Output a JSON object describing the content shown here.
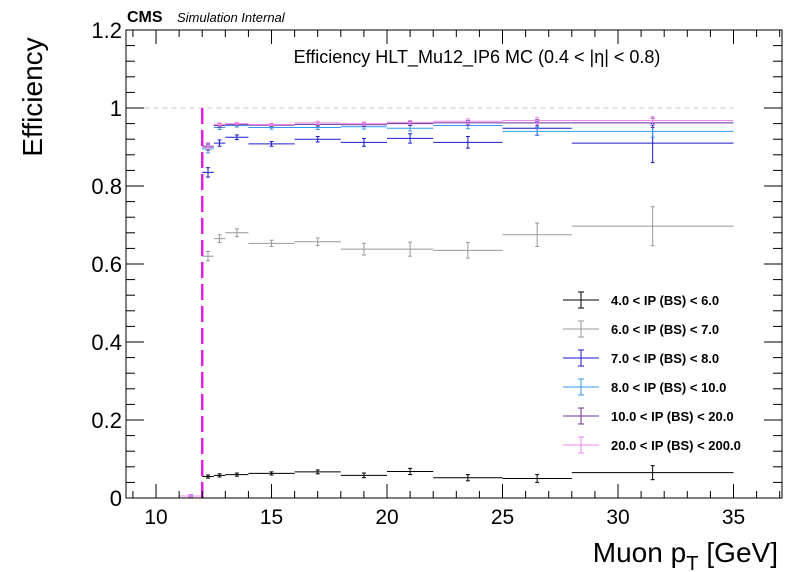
{
  "header": {
    "experiment": "CMS",
    "status": "Simulation Internal"
  },
  "chart_data": {
    "type": "scatter",
    "title": "Efficiency HLT_Mu12_IP6 MC (0.4 < |η| < 0.8)",
    "xlabel": "Muon p_T [GeV]",
    "xlabel_main": "Muon p",
    "xlabel_sub": "T",
    "xlabel_unit": "[GeV]",
    "ylabel": "Efficiency",
    "xlim": [
      8.7,
      37.1
    ],
    "ylim": [
      0,
      1.2
    ],
    "xticks": [
      10,
      15,
      20,
      25,
      30,
      35
    ],
    "yticks": [
      0,
      0.2,
      0.4,
      0.6,
      0.8,
      1,
      1.2
    ],
    "ytick_labels": [
      "0",
      "0.2",
      "0.4",
      "0.6",
      "0.8",
      "1",
      "1.2"
    ],
    "reference_line": {
      "y": 1.0,
      "x": [
        9.5,
        35
      ],
      "style": "dashed",
      "color": "#c8c8c8"
    },
    "threshold_line": {
      "x": 12,
      "style": "dashed",
      "color": "#dd22dd"
    },
    "legend_position": "bottom-right",
    "grid": false,
    "series": [
      {
        "name": "4.0 < IP (BS) < 6.0",
        "color": "#000000",
        "points": [
          {
            "x0": 11,
            "x1": 12,
            "y": 0.005,
            "err": 0.003
          },
          {
            "x0": 12,
            "x1": 12.5,
            "y": 0.055,
            "err": 0.004
          },
          {
            "x0": 12.5,
            "x1": 13,
            "y": 0.058,
            "err": 0.004
          },
          {
            "x0": 13,
            "x1": 14,
            "y": 0.06,
            "err": 0.004
          },
          {
            "x0": 14,
            "x1": 16,
            "y": 0.063,
            "err": 0.004
          },
          {
            "x0": 16,
            "x1": 18,
            "y": 0.067,
            "err": 0.005
          },
          {
            "x0": 18,
            "x1": 20,
            "y": 0.058,
            "err": 0.006
          },
          {
            "x0": 20,
            "x1": 22,
            "y": 0.068,
            "err": 0.008
          },
          {
            "x0": 22,
            "x1": 25,
            "y": 0.052,
            "err": 0.008
          },
          {
            "x0": 25,
            "x1": 28,
            "y": 0.05,
            "err": 0.01
          },
          {
            "x0": 28,
            "x1": 35,
            "y": 0.065,
            "err": 0.018
          }
        ]
      },
      {
        "name": "6.0 < IP (BS) < 7.0",
        "color": "#999999",
        "points": [
          {
            "x0": 11,
            "x1": 12,
            "y": 0.005,
            "err": 0.003
          },
          {
            "x0": 12,
            "x1": 12.5,
            "y": 0.62,
            "err": 0.012
          },
          {
            "x0": 12.5,
            "x1": 13,
            "y": 0.665,
            "err": 0.01
          },
          {
            "x0": 13,
            "x1": 14,
            "y": 0.68,
            "err": 0.01
          },
          {
            "x0": 14,
            "x1": 16,
            "y": 0.653,
            "err": 0.008
          },
          {
            "x0": 16,
            "x1": 18,
            "y": 0.657,
            "err": 0.01
          },
          {
            "x0": 18,
            "x1": 20,
            "y": 0.638,
            "err": 0.015
          },
          {
            "x0": 20,
            "x1": 22,
            "y": 0.638,
            "err": 0.018
          },
          {
            "x0": 22,
            "x1": 25,
            "y": 0.635,
            "err": 0.02
          },
          {
            "x0": 25,
            "x1": 28,
            "y": 0.675,
            "err": 0.03
          },
          {
            "x0": 28,
            "x1": 35,
            "y": 0.697,
            "err": 0.05
          }
        ]
      },
      {
        "name": "7.0 < IP (BS) < 8.0",
        "color": "#1a1acc",
        "points": [
          {
            "x0": 11,
            "x1": 12,
            "y": 0.005,
            "err": 0.003
          },
          {
            "x0": 12,
            "x1": 12.5,
            "y": 0.835,
            "err": 0.012
          },
          {
            "x0": 12.5,
            "x1": 13,
            "y": 0.91,
            "err": 0.008
          },
          {
            "x0": 13,
            "x1": 14,
            "y": 0.925,
            "err": 0.006
          },
          {
            "x0": 14,
            "x1": 16,
            "y": 0.908,
            "err": 0.006
          },
          {
            "x0": 16,
            "x1": 18,
            "y": 0.92,
            "err": 0.007
          },
          {
            "x0": 18,
            "x1": 20,
            "y": 0.912,
            "err": 0.01
          },
          {
            "x0": 20,
            "x1": 22,
            "y": 0.922,
            "err": 0.012
          },
          {
            "x0": 22,
            "x1": 25,
            "y": 0.912,
            "err": 0.015
          },
          {
            "x0": 25,
            "x1": 28,
            "y": 0.948,
            "err": 0.018
          },
          {
            "x0": 28,
            "x1": 35,
            "y": 0.91,
            "err": 0.05
          }
        ]
      },
      {
        "name": "8.0 < IP (BS) < 10.0",
        "color": "#3399ee",
        "points": [
          {
            "x0": 11,
            "x1": 12,
            "y": 0.005,
            "err": 0.003
          },
          {
            "x0": 12,
            "x1": 12.5,
            "y": 0.895,
            "err": 0.01
          },
          {
            "x0": 12.5,
            "x1": 13,
            "y": 0.95,
            "err": 0.005
          },
          {
            "x0": 13,
            "x1": 14,
            "y": 0.955,
            "err": 0.004
          },
          {
            "x0": 14,
            "x1": 16,
            "y": 0.95,
            "err": 0.004
          },
          {
            "x0": 16,
            "x1": 18,
            "y": 0.95,
            "err": 0.005
          },
          {
            "x0": 18,
            "x1": 20,
            "y": 0.952,
            "err": 0.006
          },
          {
            "x0": 20,
            "x1": 22,
            "y": 0.948,
            "err": 0.007
          },
          {
            "x0": 22,
            "x1": 25,
            "y": 0.955,
            "err": 0.008
          },
          {
            "x0": 25,
            "x1": 28,
            "y": 0.94,
            "err": 0.01
          },
          {
            "x0": 28,
            "x1": 35,
            "y": 0.94,
            "err": 0.015
          }
        ]
      },
      {
        "name": "10.0 < IP (BS) < 20.0",
        "color": "#663399",
        "points": [
          {
            "x0": 11,
            "x1": 12,
            "y": 0.005,
            "err": 0.003
          },
          {
            "x0": 12,
            "x1": 12.5,
            "y": 0.9,
            "err": 0.008
          },
          {
            "x0": 12.5,
            "x1": 13,
            "y": 0.955,
            "err": 0.004
          },
          {
            "x0": 13,
            "x1": 14,
            "y": 0.958,
            "err": 0.003
          },
          {
            "x0": 14,
            "x1": 16,
            "y": 0.956,
            "err": 0.003
          },
          {
            "x0": 16,
            "x1": 18,
            "y": 0.958,
            "err": 0.004
          },
          {
            "x0": 18,
            "x1": 20,
            "y": 0.957,
            "err": 0.004
          },
          {
            "x0": 20,
            "x1": 22,
            "y": 0.96,
            "err": 0.005
          },
          {
            "x0": 22,
            "x1": 25,
            "y": 0.962,
            "err": 0.006
          },
          {
            "x0": 25,
            "x1": 28,
            "y": 0.962,
            "err": 0.008
          },
          {
            "x0": 28,
            "x1": 35,
            "y": 0.962,
            "err": 0.012
          }
        ]
      },
      {
        "name": "20.0 < IP (BS) < 200.0",
        "color": "#ee88ee",
        "points": [
          {
            "x0": 11,
            "x1": 12,
            "y": 0.005,
            "err": 0.003
          },
          {
            "x0": 12,
            "x1": 12.5,
            "y": 0.903,
            "err": 0.008
          },
          {
            "x0": 12.5,
            "x1": 13,
            "y": 0.958,
            "err": 0.004
          },
          {
            "x0": 13,
            "x1": 14,
            "y": 0.96,
            "err": 0.003
          },
          {
            "x0": 14,
            "x1": 16,
            "y": 0.958,
            "err": 0.003
          },
          {
            "x0": 16,
            "x1": 18,
            "y": 0.962,
            "err": 0.004
          },
          {
            "x0": 18,
            "x1": 20,
            "y": 0.96,
            "err": 0.004
          },
          {
            "x0": 20,
            "x1": 22,
            "y": 0.963,
            "err": 0.005
          },
          {
            "x0": 22,
            "x1": 25,
            "y": 0.966,
            "err": 0.006
          },
          {
            "x0": 25,
            "x1": 28,
            "y": 0.968,
            "err": 0.008
          },
          {
            "x0": 28,
            "x1": 35,
            "y": 0.968,
            "err": 0.01
          }
        ]
      }
    ]
  }
}
